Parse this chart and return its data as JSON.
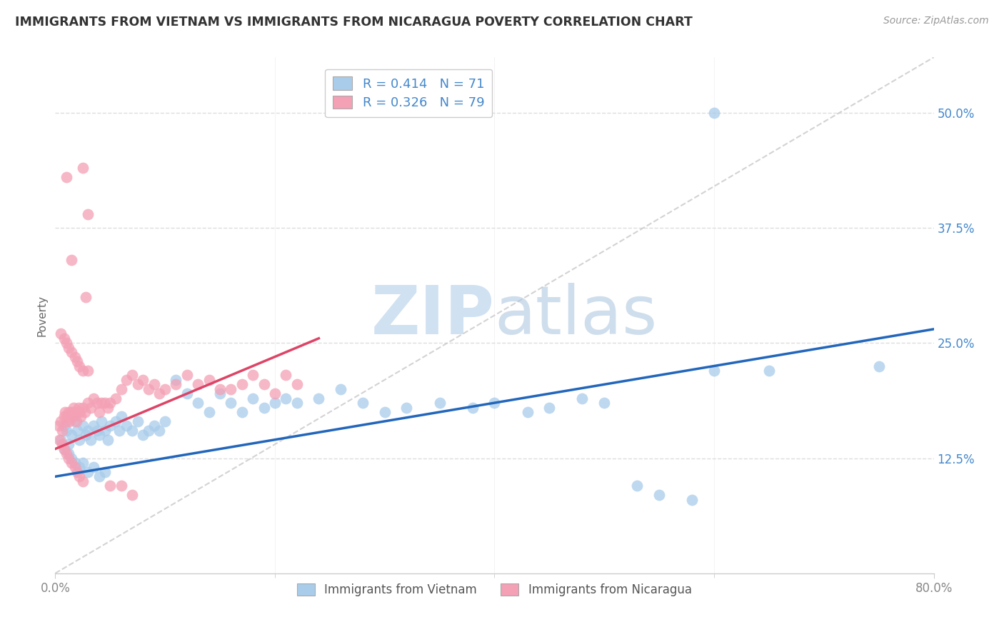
{
  "title": "IMMIGRANTS FROM VIETNAM VS IMMIGRANTS FROM NICARAGUA POVERTY CORRELATION CHART",
  "source": "Source: ZipAtlas.com",
  "ylabel": "Poverty",
  "ytick_labels": [
    "12.5%",
    "25.0%",
    "37.5%",
    "50.0%"
  ],
  "ytick_values": [
    0.125,
    0.25,
    0.375,
    0.5
  ],
  "xlim": [
    0.0,
    0.8
  ],
  "ylim": [
    0.0,
    0.56
  ],
  "blue_color": "#A8CCEA",
  "pink_color": "#F4A0B5",
  "blue_line_color": "#2266BB",
  "pink_line_color": "#DD4466",
  "dashed_line_color": "#C8C8C8",
  "label_color": "#4488CC",
  "tick_color": "#888888",
  "R_blue": 0.414,
  "N_blue": 71,
  "R_pink": 0.326,
  "N_pink": 79,
  "legend_label_blue": "Immigrants from Vietnam",
  "legend_label_pink": "Immigrants from Nicaragua",
  "watermark_zip": "ZIP",
  "watermark_atlas": "atlas",
  "blue_trend_x": [
    0.0,
    0.8
  ],
  "blue_trend_y": [
    0.105,
    0.265
  ],
  "pink_trend_x": [
    0.0,
    0.24
  ],
  "pink_trend_y": [
    0.135,
    0.255
  ],
  "blue_scatter_x": [
    0.005,
    0.008,
    0.01,
    0.012,
    0.015,
    0.018,
    0.02,
    0.022,
    0.025,
    0.028,
    0.03,
    0.032,
    0.035,
    0.038,
    0.04,
    0.042,
    0.045,
    0.048,
    0.05,
    0.055,
    0.058,
    0.06,
    0.065,
    0.07,
    0.075,
    0.08,
    0.085,
    0.09,
    0.095,
    0.1,
    0.008,
    0.012,
    0.015,
    0.018,
    0.022,
    0.025,
    0.03,
    0.035,
    0.04,
    0.045,
    0.11,
    0.12,
    0.13,
    0.14,
    0.15,
    0.16,
    0.17,
    0.18,
    0.19,
    0.2,
    0.21,
    0.22,
    0.24,
    0.26,
    0.28,
    0.3,
    0.32,
    0.35,
    0.38,
    0.4,
    0.43,
    0.45,
    0.48,
    0.5,
    0.53,
    0.55,
    0.58,
    0.6,
    0.75,
    0.6,
    0.65
  ],
  "blue_scatter_y": [
    0.145,
    0.16,
    0.155,
    0.14,
    0.15,
    0.165,
    0.155,
    0.145,
    0.16,
    0.15,
    0.155,
    0.145,
    0.16,
    0.155,
    0.15,
    0.165,
    0.155,
    0.145,
    0.16,
    0.165,
    0.155,
    0.17,
    0.16,
    0.155,
    0.165,
    0.15,
    0.155,
    0.16,
    0.155,
    0.165,
    0.135,
    0.13,
    0.125,
    0.12,
    0.115,
    0.12,
    0.11,
    0.115,
    0.105,
    0.11,
    0.21,
    0.195,
    0.185,
    0.175,
    0.195,
    0.185,
    0.175,
    0.19,
    0.18,
    0.185,
    0.19,
    0.185,
    0.19,
    0.2,
    0.185,
    0.175,
    0.18,
    0.185,
    0.18,
    0.185,
    0.175,
    0.18,
    0.19,
    0.185,
    0.095,
    0.085,
    0.08,
    0.22,
    0.225,
    0.5,
    0.22
  ],
  "pink_scatter_x": [
    0.003,
    0.005,
    0.006,
    0.008,
    0.009,
    0.01,
    0.011,
    0.012,
    0.013,
    0.015,
    0.016,
    0.017,
    0.018,
    0.019,
    0.02,
    0.021,
    0.022,
    0.023,
    0.025,
    0.027,
    0.03,
    0.032,
    0.035,
    0.038,
    0.04,
    0.042,
    0.045,
    0.048,
    0.05,
    0.055,
    0.004,
    0.006,
    0.008,
    0.01,
    0.012,
    0.015,
    0.018,
    0.02,
    0.022,
    0.025,
    0.06,
    0.065,
    0.07,
    0.075,
    0.08,
    0.085,
    0.09,
    0.095,
    0.1,
    0.11,
    0.12,
    0.13,
    0.14,
    0.15,
    0.16,
    0.17,
    0.18,
    0.19,
    0.2,
    0.21,
    0.22,
    0.005,
    0.008,
    0.01,
    0.012,
    0.015,
    0.018,
    0.02,
    0.022,
    0.025,
    0.03,
    0.03,
    0.025,
    0.028,
    0.01,
    0.015,
    0.05,
    0.06,
    0.07
  ],
  "pink_scatter_y": [
    0.16,
    0.165,
    0.155,
    0.17,
    0.175,
    0.165,
    0.17,
    0.175,
    0.165,
    0.175,
    0.17,
    0.18,
    0.175,
    0.165,
    0.175,
    0.18,
    0.175,
    0.17,
    0.18,
    0.175,
    0.185,
    0.18,
    0.19,
    0.185,
    0.175,
    0.185,
    0.185,
    0.18,
    0.185,
    0.19,
    0.145,
    0.14,
    0.135,
    0.13,
    0.125,
    0.12,
    0.115,
    0.11,
    0.105,
    0.1,
    0.2,
    0.21,
    0.215,
    0.205,
    0.21,
    0.2,
    0.205,
    0.195,
    0.2,
    0.205,
    0.215,
    0.205,
    0.21,
    0.2,
    0.2,
    0.205,
    0.215,
    0.205,
    0.195,
    0.215,
    0.205,
    0.26,
    0.255,
    0.25,
    0.245,
    0.24,
    0.235,
    0.23,
    0.225,
    0.22,
    0.22,
    0.39,
    0.44,
    0.3,
    0.43,
    0.34,
    0.095,
    0.095,
    0.085
  ]
}
